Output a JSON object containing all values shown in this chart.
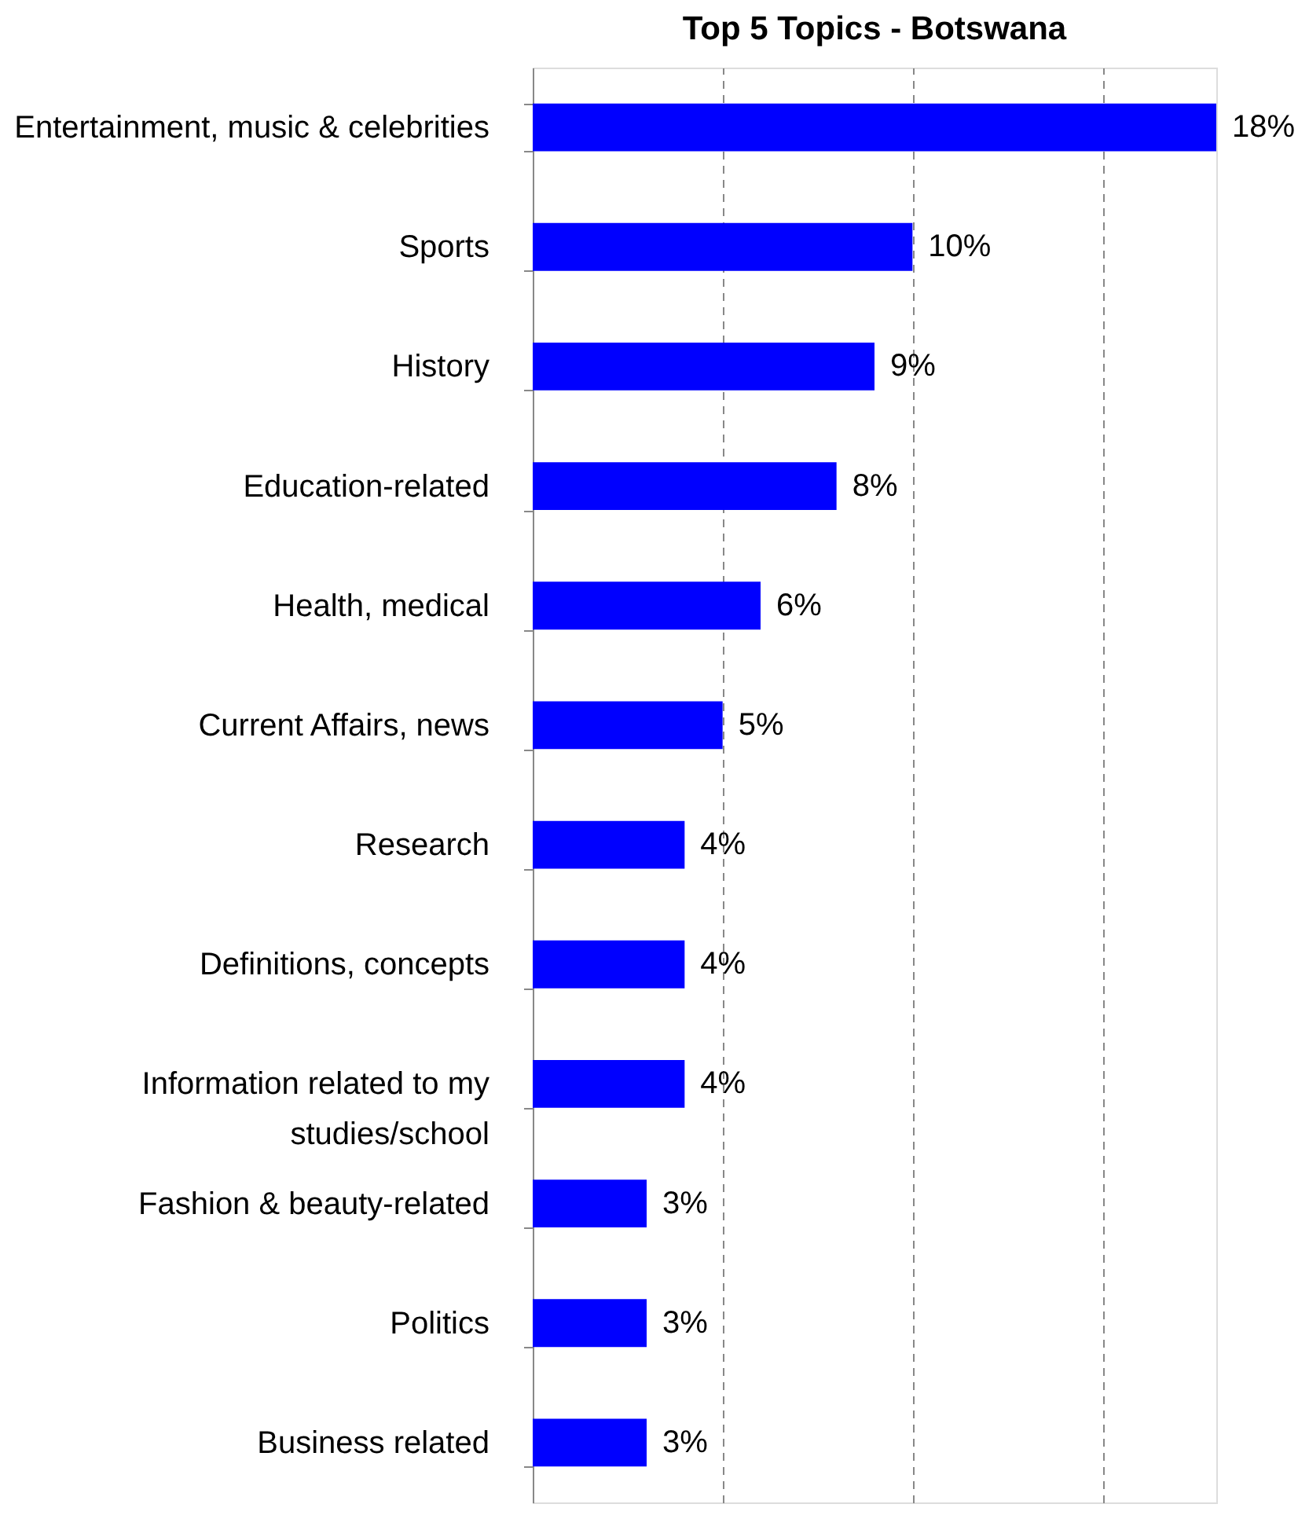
{
  "chart_data": {
    "type": "bar",
    "orientation": "horizontal",
    "title": "Top 5 Topics - Botswana",
    "categories": [
      "Entertainment, music & celebrities",
      "Sports",
      "History",
      "Education-related",
      "Health, medical",
      "Current Affairs, news",
      "Research",
      "Definitions, concepts",
      "Information related to my studies/school",
      "Fashion & beauty-related",
      "Politics",
      "Business  related"
    ],
    "values": [
      18,
      10,
      9,
      8,
      6,
      5,
      4,
      4,
      4,
      3,
      3,
      3
    ],
    "value_labels": [
      "18%",
      "10%",
      "9%",
      "8%",
      "6%",
      "5%",
      "4%",
      "4%",
      "4%",
      "3%",
      "3%",
      "3%"
    ],
    "color": "#0000ff",
    "grid": "x",
    "tick_labels": "y"
  }
}
